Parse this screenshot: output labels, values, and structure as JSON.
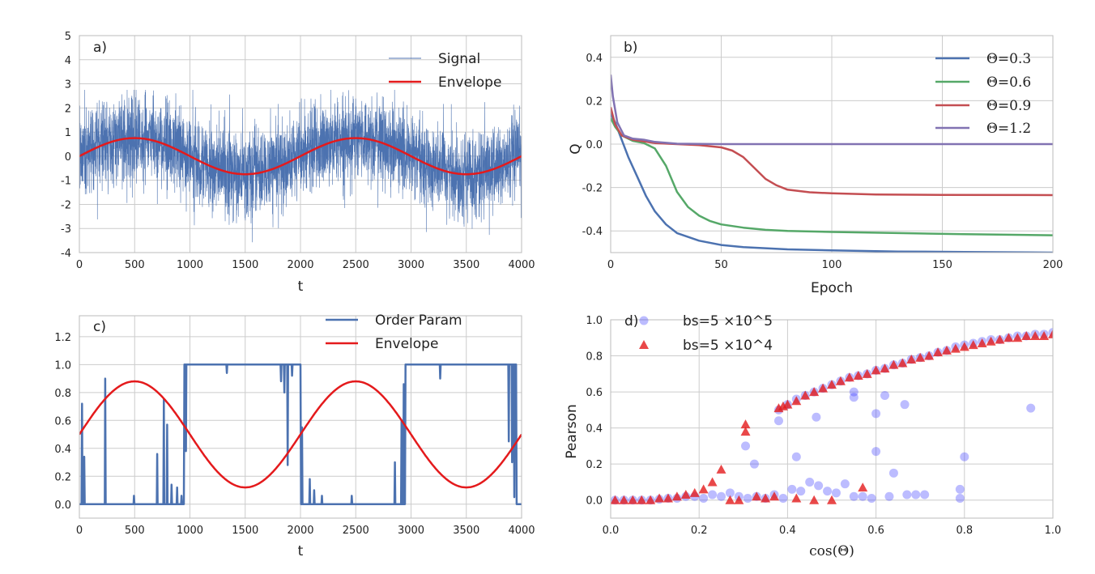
{
  "colors": {
    "blue": "#4c72b0",
    "green": "#55a868",
    "red_curve": "#c44e52",
    "purple": "#8172b2",
    "envelope": "#e41a1c",
    "scatter_blue": "#4040ff",
    "scatter_red": "#e41a1c",
    "grid": "#cccccc",
    "frame": "#bbbbbb"
  },
  "chart_data": [
    {
      "id": "a",
      "type": "line",
      "panel_label": "a)",
      "xlabel": "t",
      "ylabel": "",
      "xlim": [
        0,
        4000
      ],
      "ylim": [
        -4,
        5
      ],
      "xticks": [
        0,
        500,
        1000,
        1500,
        2000,
        2500,
        3000,
        3500,
        4000
      ],
      "yticks": [
        -4,
        -3,
        -2,
        -1,
        0,
        1,
        2,
        3,
        4,
        5
      ],
      "grid": true,
      "legend_position": "top-right",
      "series": [
        {
          "name": "Signal",
          "kind": "noise",
          "color": "blue",
          "n": 4000,
          "std": 0.85,
          "envelope_amplitude": 0.75,
          "period": 2000,
          "min": -3.7,
          "max": 2.75
        },
        {
          "name": "Envelope",
          "kind": "function",
          "color": "envelope",
          "formula": "0.75*sin(2*pi*t/2000)",
          "amplitude": 0.75,
          "period": 2000,
          "offset": 0
        }
      ]
    },
    {
      "id": "b",
      "type": "line",
      "panel_label": "b)",
      "xlabel": "Epoch",
      "ylabel": "Q",
      "xlim": [
        0,
        200
      ],
      "ylim": [
        -0.5,
        0.5
      ],
      "xticks": [
        0,
        50,
        100,
        150,
        200
      ],
      "yticks": [
        -0.4,
        -0.2,
        0.0,
        0.2,
        0.4
      ],
      "grid": true,
      "legend_position": "top-right",
      "series": [
        {
          "name": "Θ=0.3",
          "color": "blue",
          "x": [
            0,
            2,
            5,
            8,
            12,
            16,
            20,
            25,
            30,
            40,
            50,
            60,
            80,
            100,
            130,
            160,
            200
          ],
          "y": [
            0.14,
            0.1,
            0.02,
            -0.06,
            -0.15,
            -0.24,
            -0.31,
            -0.37,
            -0.41,
            -0.445,
            -0.465,
            -0.475,
            -0.485,
            -0.49,
            -0.495,
            -0.497,
            -0.5
          ]
        },
        {
          "name": "Θ=0.6",
          "color": "green",
          "x": [
            0,
            2,
            5,
            10,
            15,
            20,
            25,
            30,
            35,
            40,
            45,
            50,
            60,
            70,
            80,
            100,
            130,
            160,
            200
          ],
          "y": [
            0.12,
            0.08,
            0.04,
            0.015,
            0.005,
            -0.02,
            -0.1,
            -0.22,
            -0.29,
            -0.33,
            -0.355,
            -0.37,
            -0.385,
            -0.395,
            -0.4,
            -0.405,
            -0.41,
            -0.415,
            -0.42
          ]
        },
        {
          "name": "Θ=0.9",
          "color": "red_curve",
          "x": [
            0,
            2,
            5,
            10,
            20,
            30,
            40,
            50,
            55,
            60,
            65,
            70,
            75,
            80,
            90,
            100,
            120,
            150,
            200
          ],
          "y": [
            0.17,
            0.09,
            0.04,
            0.02,
            0.005,
            0.0,
            -0.005,
            -0.015,
            -0.03,
            -0.06,
            -0.11,
            -0.16,
            -0.19,
            -0.21,
            -0.222,
            -0.227,
            -0.232,
            -0.234,
            -0.235
          ]
        },
        {
          "name": "Θ=1.2",
          "color": "purple",
          "x": [
            0,
            1,
            3,
            6,
            10,
            15,
            20,
            30,
            50,
            100,
            150,
            200
          ],
          "y": [
            0.32,
            0.22,
            0.1,
            0.04,
            0.025,
            0.02,
            0.01,
            0.002,
            0.0,
            0.0,
            0.0,
            0.0
          ]
        }
      ]
    },
    {
      "id": "c",
      "type": "line",
      "panel_label": "c)",
      "xlabel": "t",
      "ylabel": "",
      "xlim": [
        0,
        4000
      ],
      "ylim": [
        -0.1,
        1.35
      ],
      "xticks": [
        0,
        500,
        1000,
        1500,
        2000,
        2500,
        3000,
        3500,
        4000
      ],
      "yticks": [
        0.0,
        0.2,
        0.4,
        0.6,
        0.8,
        1.0,
        1.2
      ],
      "grid": true,
      "legend_position": "top-right",
      "series": [
        {
          "name": "Order Param",
          "kind": "switching",
          "color": "blue",
          "high_intervals": [
            [
              950,
              1100
            ],
            [
              1100,
              2000
            ],
            [
              2950,
              3950
            ]
          ],
          "spikes": [
            [
              20,
              0.72
            ],
            [
              40,
              0.34
            ],
            [
              230,
              0.9
            ],
            [
              490,
              0.06
            ],
            [
              700,
              0.36
            ],
            [
              760,
              0.75
            ],
            [
              790,
              0.57
            ],
            [
              830,
              0.14
            ],
            [
              880,
              0.12
            ],
            [
              920,
              0.06
            ],
            [
              960,
              0.38
            ],
            [
              2010,
              0.55
            ],
            [
              2080,
              0.18
            ],
            [
              2120,
              0.1
            ],
            [
              2190,
              0.06
            ],
            [
              2460,
              0.06
            ],
            [
              2910,
              0.6
            ],
            [
              2930,
              0.86
            ],
            [
              2850,
              0.3
            ]
          ],
          "dips": [
            [
              1330,
              0.94
            ],
            [
              1820,
              0.88
            ],
            [
              1850,
              0.8
            ],
            [
              1880,
              0.28
            ],
            [
              1920,
              0.92
            ],
            [
              3260,
              0.9
            ],
            [
              3880,
              0.45
            ],
            [
              3910,
              0.3
            ],
            [
              3930,
              0.05
            ]
          ]
        },
        {
          "name": "Envelope",
          "kind": "function",
          "color": "envelope",
          "formula": "0.5+0.38*sin(2*pi*t/2000)",
          "amplitude": 0.38,
          "period": 2000,
          "offset": 0.5
        }
      ]
    },
    {
      "id": "d",
      "type": "scatter",
      "panel_label": "d)",
      "xlabel": "cos(Θ)",
      "ylabel": "Pearson",
      "xlim": [
        0.0,
        1.0
      ],
      "ylim": [
        -0.1,
        1.0
      ],
      "xticks": [
        0.0,
        0.2,
        0.4,
        0.6,
        0.8,
        1.0
      ],
      "yticks": [
        0.0,
        0.2,
        0.4,
        0.6,
        0.8,
        1.0
      ],
      "grid": true,
      "legend_position": "top-left",
      "series": [
        {
          "name": "bs=5 ×10^5",
          "marker": "circle",
          "color": "scatter_blue",
          "alpha": 0.35,
          "points": [
            [
              0.01,
              0.0
            ],
            [
              0.03,
              0.0
            ],
            [
              0.05,
              0.0
            ],
            [
              0.07,
              0.0
            ],
            [
              0.09,
              0.0
            ],
            [
              0.11,
              0.005
            ],
            [
              0.13,
              0.01
            ],
            [
              0.15,
              0.01
            ],
            [
              0.17,
              0.02
            ],
            [
              0.19,
              0.02
            ],
            [
              0.21,
              0.01
            ],
            [
              0.23,
              0.03
            ],
            [
              0.25,
              0.02
            ],
            [
              0.27,
              0.04
            ],
            [
              0.29,
              0.02
            ],
            [
              0.31,
              0.01
            ],
            [
              0.33,
              0.02
            ],
            [
              0.35,
              0.01
            ],
            [
              0.37,
              0.03
            ],
            [
              0.39,
              0.01
            ],
            [
              0.41,
              0.06
            ],
            [
              0.43,
              0.05
            ],
            [
              0.45,
              0.1
            ],
            [
              0.47,
              0.08
            ],
            [
              0.49,
              0.05
            ],
            [
              0.51,
              0.04
            ],
            [
              0.53,
              0.09
            ],
            [
              0.55,
              0.02
            ],
            [
              0.57,
              0.02
            ],
            [
              0.59,
              0.01
            ],
            [
              0.63,
              0.02
            ],
            [
              0.67,
              0.03
            ],
            [
              0.69,
              0.03
            ],
            [
              0.71,
              0.03
            ],
            [
              0.79,
              0.06
            ],
            [
              0.79,
              0.01
            ],
            [
              0.305,
              0.3
            ],
            [
              0.325,
              0.2
            ],
            [
              0.38,
              0.44
            ],
            [
              0.42,
              0.24
            ],
            [
              0.465,
              0.46
            ],
            [
              0.55,
              0.57
            ],
            [
              0.55,
              0.6
            ],
            [
              0.6,
              0.48
            ],
            [
              0.6,
              0.27
            ],
            [
              0.62,
              0.58
            ],
            [
              0.64,
              0.15
            ],
            [
              0.665,
              0.53
            ],
            [
              0.8,
              0.24
            ],
            [
              0.95,
              0.51
            ],
            [
              0.38,
              0.5
            ],
            [
              0.42,
              0.56
            ],
            [
              0.46,
              0.6
            ],
            [
              0.5,
              0.64
            ],
            [
              0.54,
              0.68
            ],
            [
              0.58,
              0.7
            ],
            [
              0.62,
              0.73
            ],
            [
              0.66,
              0.76
            ],
            [
              0.7,
              0.79
            ],
            [
              0.74,
              0.82
            ],
            [
              0.78,
              0.85
            ],
            [
              0.82,
              0.87
            ],
            [
              0.86,
              0.89
            ],
            [
              0.9,
              0.9
            ],
            [
              0.94,
              0.91
            ],
            [
              0.98,
              0.92
            ],
            [
              1.0,
              0.93
            ],
            [
              0.4,
              0.53
            ],
            [
              0.44,
              0.58
            ],
            [
              0.48,
              0.62
            ],
            [
              0.52,
              0.66
            ],
            [
              0.56,
              0.69
            ],
            [
              0.6,
              0.72
            ],
            [
              0.64,
              0.75
            ],
            [
              0.68,
              0.78
            ],
            [
              0.72,
              0.8
            ],
            [
              0.76,
              0.83
            ],
            [
              0.8,
              0.86
            ],
            [
              0.84,
              0.88
            ],
            [
              0.88,
              0.89
            ],
            [
              0.92,
              0.91
            ],
            [
              0.96,
              0.92
            ]
          ]
        },
        {
          "name": "bs=5 ×10^4",
          "marker": "triangle",
          "color": "scatter_red",
          "alpha": 0.8,
          "points": [
            [
              0.01,
              0.0
            ],
            [
              0.03,
              0.0
            ],
            [
              0.05,
              0.0
            ],
            [
              0.07,
              0.0
            ],
            [
              0.09,
              0.0
            ],
            [
              0.11,
              0.01
            ],
            [
              0.13,
              0.01
            ],
            [
              0.15,
              0.02
            ],
            [
              0.17,
              0.03
            ],
            [
              0.19,
              0.04
            ],
            [
              0.21,
              0.06
            ],
            [
              0.23,
              0.1
            ],
            [
              0.25,
              0.17
            ],
            [
              0.27,
              0.0
            ],
            [
              0.29,
              0.0
            ],
            [
              0.305,
              0.42
            ],
            [
              0.305,
              0.38
            ],
            [
              0.33,
              0.02
            ],
            [
              0.35,
              0.01
            ],
            [
              0.37,
              0.02
            ],
            [
              0.38,
              0.51
            ],
            [
              0.39,
              0.52
            ],
            [
              0.4,
              0.53
            ],
            [
              0.42,
              0.55
            ],
            [
              0.44,
              0.58
            ],
            [
              0.46,
              0.6
            ],
            [
              0.48,
              0.62
            ],
            [
              0.5,
              0.64
            ],
            [
              0.52,
              0.66
            ],
            [
              0.54,
              0.68
            ],
            [
              0.56,
              0.69
            ],
            [
              0.58,
              0.7
            ],
            [
              0.6,
              0.72
            ],
            [
              0.62,
              0.73
            ],
            [
              0.64,
              0.75
            ],
            [
              0.66,
              0.76
            ],
            [
              0.68,
              0.78
            ],
            [
              0.7,
              0.79
            ],
            [
              0.72,
              0.8
            ],
            [
              0.74,
              0.82
            ],
            [
              0.76,
              0.83
            ],
            [
              0.78,
              0.84
            ],
            [
              0.8,
              0.85
            ],
            [
              0.82,
              0.86
            ],
            [
              0.84,
              0.87
            ],
            [
              0.86,
              0.88
            ],
            [
              0.88,
              0.89
            ],
            [
              0.9,
              0.9
            ],
            [
              0.92,
              0.9
            ],
            [
              0.94,
              0.91
            ],
            [
              0.96,
              0.91
            ],
            [
              0.98,
              0.91
            ],
            [
              1.0,
              0.92
            ],
            [
              0.42,
              0.01
            ],
            [
              0.46,
              0.0
            ],
            [
              0.5,
              0.0
            ],
            [
              0.57,
              0.07
            ]
          ]
        }
      ]
    }
  ]
}
